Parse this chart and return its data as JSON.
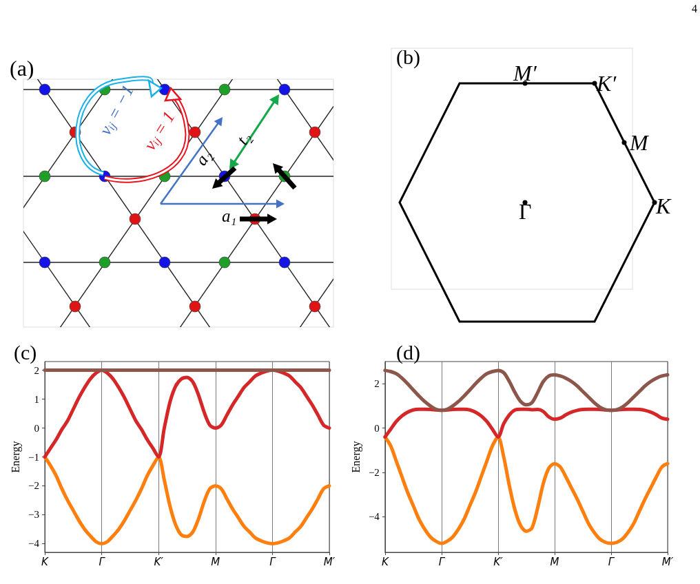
{
  "chart_data": [
    {
      "type": "other",
      "title": "(a)",
      "annotations": [
        "νᵢⱼ = −1",
        "νᵢⱼ = 1",
        "a₂",
        "a₁",
        "t₂"
      ]
    },
    {
      "type": "other",
      "title": "(b)",
      "annotations": [
        "M′",
        "K′",
        "M",
        "K",
        "Γ",
        "4"
      ]
    },
    {
      "type": "line",
      "title": "(c)",
      "ylabel": "Energy",
      "categories": [
        "K",
        null,
        null,
        null,
        null,
        null,
        null,
        null,
        null,
        null,
        "Γ",
        null,
        null,
        null,
        null,
        null,
        null,
        null,
        null,
        null,
        "K′",
        null,
        null,
        null,
        null,
        null,
        null,
        null,
        null,
        null,
        "M",
        null,
        null,
        null,
        null,
        null,
        null,
        null,
        null,
        null,
        "Γ",
        null,
        null,
        null,
        null,
        null,
        null,
        null,
        null,
        null,
        "M′"
      ],
      "ylim": [
        -4.3,
        2.3
      ],
      "yticks": [
        -4,
        -3,
        -2,
        -1,
        0,
        1,
        2
      ],
      "grid": "x",
      "line_style": "solid",
      "series": [
        {
          "color": "#ff7f0e",
          "values": [
            -1,
            -1.3,
            -1.65,
            -2.1,
            -2.5,
            -2.85,
            -3.2,
            -3.5,
            -3.73,
            -3.93,
            -4,
            -3.93,
            -3.73,
            -3.5,
            -3.2,
            -2.85,
            -2.5,
            -2.1,
            -1.65,
            -1.3,
            -1,
            -1.8,
            -2.7,
            -3.35,
            -3.7,
            -3.75,
            -3.6,
            -3.15,
            -2.55,
            -2.1,
            -2,
            -2.1,
            -2.45,
            -2.8,
            -3.1,
            -3.4,
            -3.6,
            -3.8,
            -3.9,
            -3.97,
            -4,
            -3.97,
            -3.9,
            -3.8,
            -3.6,
            -3.4,
            -3.1,
            -2.8,
            -2.45,
            -2.1,
            -2
          ]
        },
        {
          "color": "#d62728",
          "values": [
            -1,
            -0.7,
            -0.4,
            -0.05,
            0.25,
            0.65,
            1.05,
            1.4,
            1.7,
            1.9,
            2,
            1.9,
            1.7,
            1.4,
            1.05,
            0.65,
            0.25,
            -0.05,
            -0.4,
            -0.7,
            -1,
            0,
            0.9,
            1.45,
            1.7,
            1.75,
            1.6,
            1.15,
            0.55,
            0.1,
            0,
            0.1,
            0.45,
            0.8,
            1.1,
            1.4,
            1.6,
            1.8,
            1.9,
            1.97,
            2,
            1.97,
            1.9,
            1.8,
            1.6,
            1.4,
            1.1,
            0.8,
            0.45,
            0.1,
            0
          ]
        },
        {
          "color": "#8c564b",
          "values": [
            2,
            2,
            2,
            2,
            2,
            2,
            2,
            2,
            2,
            2,
            2,
            2,
            2,
            2,
            2,
            2,
            2,
            2,
            2,
            2,
            2,
            2,
            2,
            2,
            2,
            2,
            2,
            2,
            2,
            2,
            2,
            2,
            2,
            2,
            2,
            2,
            2,
            2,
            2,
            2,
            2,
            2,
            2,
            2,
            2,
            2,
            2,
            2,
            2,
            2,
            2
          ]
        }
      ]
    },
    {
      "type": "line",
      "title": "(d)",
      "ylabel": "Energy",
      "categories": [
        "K",
        null,
        null,
        null,
        null,
        null,
        null,
        null,
        null,
        null,
        "Γ",
        null,
        null,
        null,
        null,
        null,
        null,
        null,
        null,
        null,
        "K′",
        null,
        null,
        null,
        null,
        null,
        null,
        null,
        null,
        null,
        "M",
        null,
        null,
        null,
        null,
        null,
        null,
        null,
        null,
        null,
        "Γ",
        null,
        null,
        null,
        null,
        null,
        null,
        null,
        null,
        null,
        "M′"
      ],
      "ylim": [
        -5.6,
        3.0
      ],
      "yticks": [
        -4,
        -2,
        0,
        2
      ],
      "grid": "x",
      "line_style": "solid",
      "series": [
        {
          "color": "#ff7f0e",
          "values": [
            -0.4,
            -0.8,
            -1.5,
            -2.2,
            -2.9,
            -3.5,
            -4.1,
            -4.55,
            -4.9,
            -5.1,
            -5.2,
            -5.1,
            -4.9,
            -4.55,
            -4.1,
            -3.5,
            -2.9,
            -2.2,
            -1.5,
            -0.8,
            -0.4,
            -1.3,
            -2.6,
            -3.7,
            -4.4,
            -4.65,
            -4.5,
            -3.6,
            -2.5,
            -1.8,
            -1.6,
            -1.75,
            -2.2,
            -2.7,
            -3.2,
            -3.75,
            -4.3,
            -4.7,
            -5.0,
            -5.15,
            -5.2,
            -5.15,
            -5.0,
            -4.7,
            -4.3,
            -3.75,
            -3.2,
            -2.7,
            -2.2,
            -1.75,
            -1.6
          ]
        },
        {
          "color": "#d62728",
          "values": [
            -0.4,
            -0.05,
            0.3,
            0.55,
            0.72,
            0.82,
            0.85,
            0.85,
            0.84,
            0.82,
            0.8,
            0.82,
            0.84,
            0.85,
            0.85,
            0.82,
            0.72,
            0.55,
            0.3,
            -0.05,
            -0.4,
            0.2,
            0.6,
            0.82,
            0.85,
            0.85,
            0.83,
            0.84,
            0.75,
            0.5,
            0.4,
            0.45,
            0.6,
            0.72,
            0.8,
            0.84,
            0.85,
            0.85,
            0.84,
            0.82,
            0.8,
            0.82,
            0.84,
            0.85,
            0.85,
            0.84,
            0.8,
            0.72,
            0.6,
            0.45,
            0.4
          ]
        },
        {
          "color": "#8c564b",
          "values": [
            2.6,
            2.55,
            2.45,
            2.25,
            2.0,
            1.72,
            1.45,
            1.2,
            1.0,
            0.85,
            0.8,
            0.85,
            1.0,
            1.2,
            1.45,
            1.72,
            2.0,
            2.25,
            2.45,
            2.55,
            2.6,
            2.5,
            2.1,
            1.6,
            1.2,
            1.05,
            1.15,
            1.6,
            2.1,
            2.35,
            2.4,
            2.35,
            2.25,
            2.1,
            1.9,
            1.65,
            1.4,
            1.15,
            0.95,
            0.83,
            0.8,
            0.83,
            0.95,
            1.15,
            1.4,
            1.65,
            1.9,
            2.1,
            2.25,
            2.35,
            2.4
          ]
        }
      ]
    }
  ]
}
